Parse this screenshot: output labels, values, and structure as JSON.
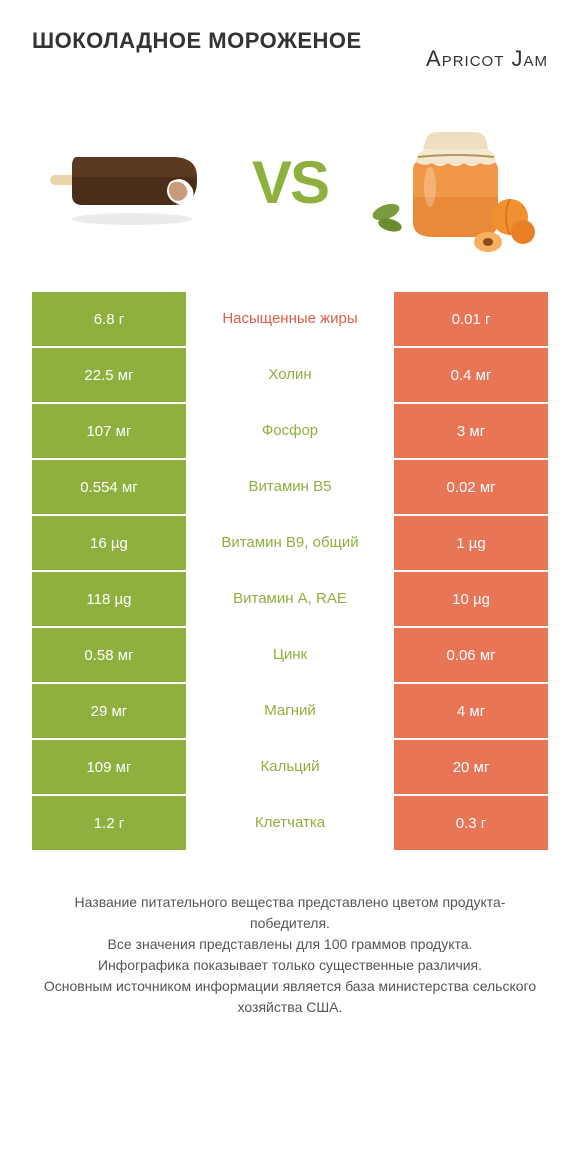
{
  "header": {
    "left_title": "ШОКОЛАДНОЕ МОРОЖЕНОЕ",
    "right_title": "Apricot Jam",
    "vs": "VS"
  },
  "colors": {
    "left": "#8fb03e",
    "right": "#e87556",
    "mid_text_green": "#8fb03e",
    "mid_text_red": "#d9604a"
  },
  "rows": [
    {
      "left": "6.8 г",
      "mid": "Насыщенные жиры",
      "right": "0.01 г",
      "mid_color": "#d9604a"
    },
    {
      "left": "22.5 мг",
      "mid": "Холин",
      "right": "0.4 мг",
      "mid_color": "#8fb03e"
    },
    {
      "left": "107 мг",
      "mid": "Фосфор",
      "right": "3 мг",
      "mid_color": "#8fb03e"
    },
    {
      "left": "0.554 мг",
      "mid": "Витамин B5",
      "right": "0.02 мг",
      "mid_color": "#8fb03e"
    },
    {
      "left": "16 µg",
      "mid": "Витамин B9, общий",
      "right": "1 µg",
      "mid_color": "#8fb03e"
    },
    {
      "left": "118 µg",
      "mid": "Витамин A, RAE",
      "right": "10 µg",
      "mid_color": "#8fb03e"
    },
    {
      "left": "0.58 мг",
      "mid": "Цинк",
      "right": "0.06 мг",
      "mid_color": "#8fb03e"
    },
    {
      "left": "29 мг",
      "mid": "Магний",
      "right": "4 мг",
      "mid_color": "#8fb03e"
    },
    {
      "left": "109 мг",
      "mid": "Кальций",
      "right": "20 мг",
      "mid_color": "#8fb03e"
    },
    {
      "left": "1.2 г",
      "mid": "Клетчатка",
      "right": "0.3 г",
      "mid_color": "#8fb03e"
    }
  ],
  "footer": {
    "line1": "Название питательного вещества представлено цветом продукта-победителя.",
    "line2": "Все значения представлены для 100 граммов продукта.",
    "line3": "Инфографика показывает только существенные различия.",
    "line4": "Основным источником информации является база министерства сельского хозяйства США."
  }
}
